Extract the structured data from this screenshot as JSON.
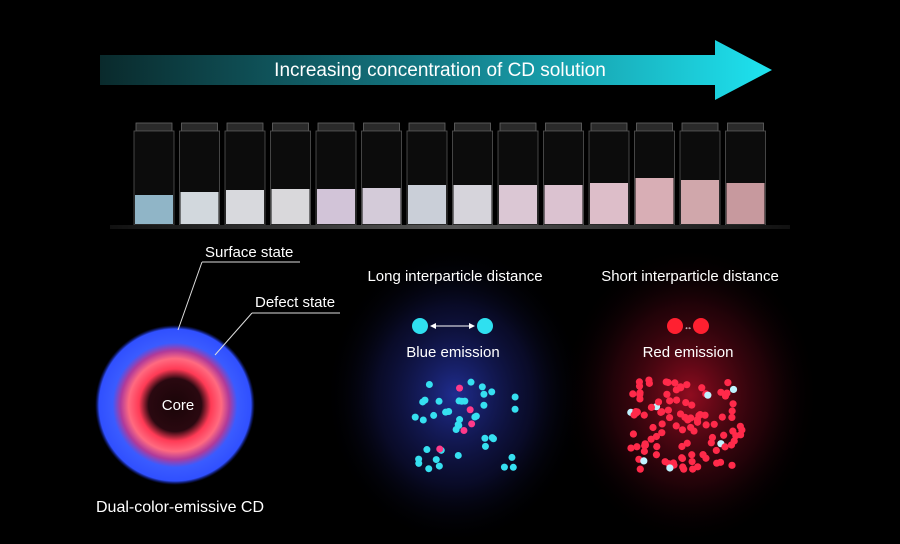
{
  "arrow": {
    "label": "Increasing concentration of CD solution"
  },
  "model": {
    "surface_label": "Surface state",
    "defect_label": "Defect state",
    "core_label": "Core",
    "caption": "Dual-color-emissive CD"
  },
  "blue_panel": {
    "title": "Long interparticle distance",
    "label": "Blue emission"
  },
  "red_panel": {
    "title": "Short interparticle distance",
    "label": "Red emission"
  }
}
